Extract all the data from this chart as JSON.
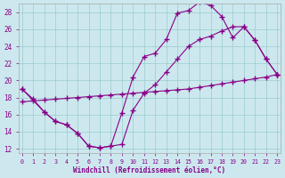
{
  "bg_color": "#cce8ee",
  "line_color": "#880088",
  "grid_color": "#99cccc",
  "xlim": [
    -0.3,
    23.3
  ],
  "ylim": [
    11.5,
    29.0
  ],
  "xticks": [
    0,
    1,
    2,
    3,
    4,
    5,
    6,
    7,
    8,
    9,
    10,
    11,
    12,
    13,
    14,
    15,
    16,
    17,
    18,
    19,
    20,
    21,
    22,
    23
  ],
  "yticks": [
    12,
    14,
    16,
    18,
    20,
    22,
    24,
    26,
    28
  ],
  "xlabel": "Windchill (Refroidissement éolien,°C)",
  "curve_upper_x": [
    0,
    1,
    2,
    3,
    4,
    5,
    6,
    7,
    8,
    9,
    10,
    11,
    12,
    13,
    14,
    15,
    16,
    17,
    18,
    19,
    20,
    21,
    22,
    23
  ],
  "curve_upper_y": [
    19.0,
    17.8,
    16.3,
    15.2,
    14.8,
    13.8,
    12.3,
    12.1,
    12.3,
    16.2,
    20.4,
    22.8,
    23.2,
    24.8,
    27.9,
    28.2,
    29.2,
    28.8,
    27.5,
    25.0,
    26.3,
    24.7,
    22.5,
    20.7
  ],
  "curve_lower_x": [
    0,
    2,
    3,
    4,
    5,
    6,
    7,
    8,
    9,
    10,
    11,
    12,
    13,
    14,
    15,
    16,
    17,
    18,
    19,
    20,
    21,
    22,
    23
  ],
  "curve_lower_y": [
    19.0,
    16.3,
    15.2,
    14.8,
    13.8,
    12.3,
    12.1,
    12.3,
    12.5,
    16.5,
    18.5,
    19.5,
    21.0,
    22.5,
    24.0,
    24.8,
    25.2,
    25.8,
    26.3,
    26.3,
    24.7,
    22.5,
    20.7
  ],
  "line_straight_x": [
    0,
    1,
    2,
    3,
    4,
    5,
    6,
    7,
    8,
    9,
    10,
    11,
    12,
    13,
    14,
    15,
    16,
    17,
    18,
    19,
    20,
    21,
    22,
    23
  ],
  "line_straight_y": [
    17.5,
    17.6,
    17.7,
    17.8,
    17.9,
    18.0,
    18.1,
    18.2,
    18.3,
    18.4,
    18.5,
    18.6,
    18.7,
    18.8,
    18.9,
    19.0,
    19.2,
    19.4,
    19.6,
    19.8,
    20.0,
    20.2,
    20.4,
    20.7
  ]
}
